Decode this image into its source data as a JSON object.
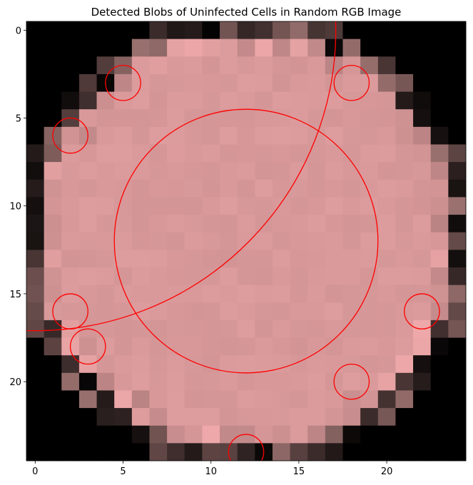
{
  "chart_data": {
    "type": "heatmap",
    "title": "Detected Blobs of Uninfected Cells in Random RGB Image",
    "xlabel": "",
    "ylabel": "",
    "grid_size": [
      25,
      25
    ],
    "xlim": [
      -0.5,
      24.5
    ],
    "ylim": [
      24.5,
      -0.5
    ],
    "x_ticks": [
      0,
      5,
      10,
      15,
      20
    ],
    "y_ticks": [
      0,
      5,
      10,
      15,
      20
    ],
    "x_tick_labels": [
      "0",
      "5",
      "10",
      "15",
      "20"
    ],
    "y_tick_labels": [
      "0",
      "5",
      "10",
      "15",
      "20"
    ],
    "grid": false,
    "image": {
      "description_colors": {
        "background": "#000000",
        "cell_fill": "#d9999a",
        "cell_edge": "#9b7270"
      },
      "center": [
        12,
        12
      ],
      "radius": 12.4
    },
    "blob_color": "#ff0000",
    "blobs": [
      {
        "x": 12,
        "y": 12,
        "r": 7.5
      },
      {
        "x": 0,
        "y": 0,
        "r": 17.1
      },
      {
        "x": 5,
        "y": 3,
        "r": 1
      },
      {
        "x": 18,
        "y": 3,
        "r": 1
      },
      {
        "x": 2,
        "y": 6,
        "r": 1
      },
      {
        "x": 2,
        "y": 16,
        "r": 1
      },
      {
        "x": 22,
        "y": 16,
        "r": 1
      },
      {
        "x": 3,
        "y": 18,
        "r": 1
      },
      {
        "x": 18,
        "y": 20,
        "r": 1
      },
      {
        "x": 12,
        "y": 24,
        "r": 1
      }
    ]
  }
}
